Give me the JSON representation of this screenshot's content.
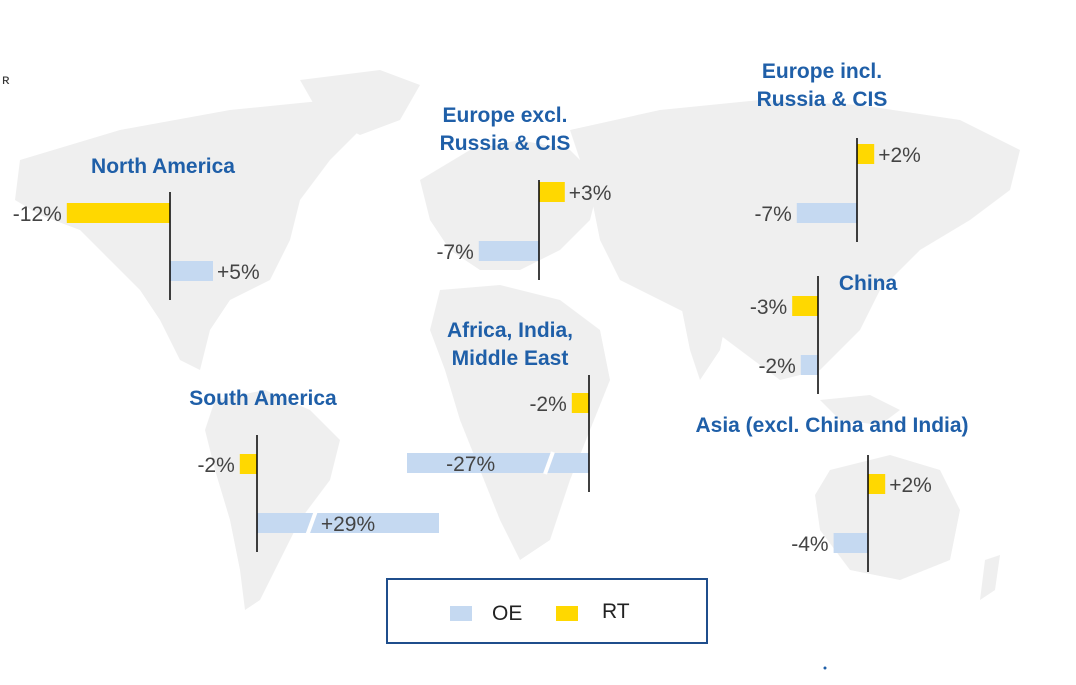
{
  "colors": {
    "OE": "#c5d9f1",
    "RT": "#ffd800",
    "title": "#1f5fa8",
    "axis": "#000000",
    "label": "#444444",
    "map": "#efefef"
  },
  "legend": {
    "oe_label": "OE",
    "rt_label": "RT"
  },
  "chart_data": {
    "type": "bar",
    "orientation": "horizontal",
    "series_names": [
      "OE",
      "RT"
    ],
    "regions": [
      {
        "name": "North America",
        "title_lines": [
          "North America"
        ],
        "OE": 5,
        "RT": -12,
        "OE_label": "+5%",
        "RT_label": "-12%"
      },
      {
        "name": "Europe excl. Russia & CIS",
        "title_lines": [
          "Europe excl.",
          "Russia & CIS"
        ],
        "OE": -7,
        "RT": 3,
        "OE_label": "-7%",
        "RT_label": "+3%"
      },
      {
        "name": "Europe incl. Russia & CIS",
        "title_lines": [
          "Europe incl.",
          "Russia & CIS"
        ],
        "OE": -7,
        "RT": 2,
        "OE_label": "-7%",
        "RT_label": "+2%"
      },
      {
        "name": "China",
        "title_lines": [
          "China"
        ],
        "OE": -2,
        "RT": -3,
        "OE_label": "-2%",
        "RT_label": "-3%"
      },
      {
        "name": "South America",
        "title_lines": [
          "South America"
        ],
        "OE": 29,
        "RT": -2,
        "OE_label": "+29%",
        "RT_label": "-2%"
      },
      {
        "name": "Africa, India, Middle East",
        "title_lines": [
          "Africa, India,",
          "Middle East"
        ],
        "OE": -27,
        "RT": -2,
        "OE_label": "-27%",
        "RT_label": "-2%"
      },
      {
        "name": "Asia (excl. China and India)",
        "title_lines": [
          "Asia (excl. China and India)"
        ],
        "OE": -4,
        "RT": 2,
        "OE_label": "-4%",
        "RT_label": "+2%"
      }
    ]
  }
}
